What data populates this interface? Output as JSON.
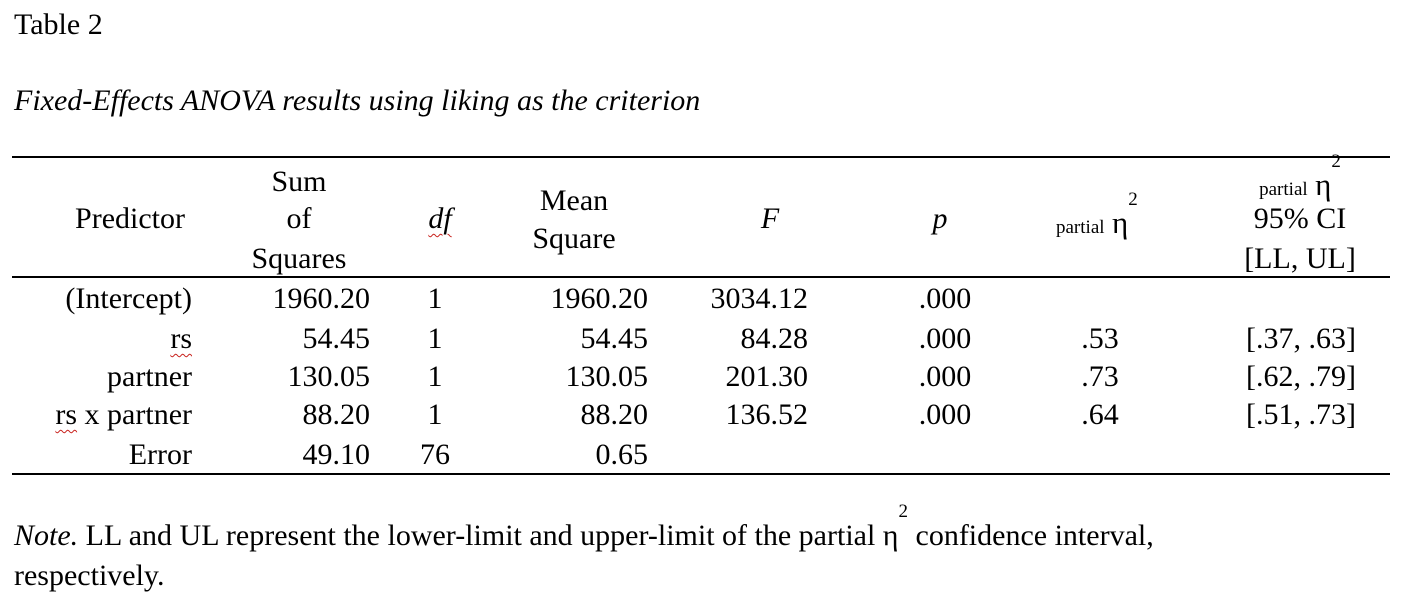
{
  "table_label": "Table 2",
  "table_title": "Fixed-Effects ANOVA results using liking as the criterion",
  "headers": {
    "predictor": "Predictor",
    "ss_1": "Sum",
    "ss_2": "of",
    "ss_3": "Squares",
    "df": "df",
    "ms_1": "Mean",
    "ms_2": "Square",
    "f": "F",
    "p": "p",
    "eta_word": "partial",
    "eta_symbol": "η",
    "eta_sup": "2",
    "ci_word": "partial",
    "ci_symbol": "η",
    "ci_sup": "2",
    "ci_line2": "95% CI",
    "ci_line3": "[LL, UL]"
  },
  "rows": [
    {
      "predictor": "(Intercept)",
      "ss": "1960.20",
      "df": "1",
      "ms": "1960.20",
      "f": "3034.12",
      "p": ".000",
      "eta": "",
      "ci": ""
    },
    {
      "predictor": "rs",
      "ss": "54.45",
      "df": "1",
      "ms": "54.45",
      "f": "84.28",
      "p": ".000",
      "eta": ".53",
      "ci": "[.37, .63]"
    },
    {
      "predictor": "partner",
      "ss": "130.05",
      "df": "1",
      "ms": "130.05",
      "f": "201.30",
      "p": ".000",
      "eta": ".73",
      "ci": "[.62, .79]"
    },
    {
      "predictor_a": "rs",
      "predictor_b": " x partner",
      "ss": "88.20",
      "df": "1",
      "ms": "88.20",
      "f": "136.52",
      "p": ".000",
      "eta": ".64",
      "ci": "[.51, .73]"
    },
    {
      "predictor": "Error",
      "ss": "49.10",
      "df": "76",
      "ms": "0.65",
      "f": "",
      "p": "",
      "eta": "",
      "ci": ""
    }
  ],
  "note": {
    "label": "Note.",
    "text_1": " LL and UL represent the lower-limit and upper-limit of the partial η",
    "sup": "2",
    "text_2": " confidence interval,",
    "text_3": "respectively."
  }
}
